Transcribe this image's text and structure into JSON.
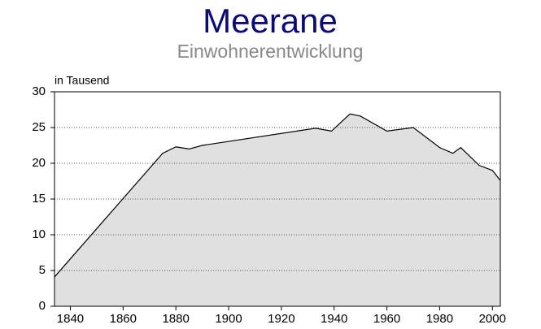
{
  "chart_data": {
    "type": "area",
    "title": "Meerane",
    "subtitle": "Einwohnerentwicklung",
    "y_label": "in Tausend",
    "x": [
      1834,
      1875,
      1880,
      1885,
      1890,
      1933,
      1939,
      1946,
      1950,
      1960,
      1970,
      1980,
      1985,
      1988,
      1995,
      2000,
      2003
    ],
    "values": [
      4.1,
      21.4,
      22.3,
      22.0,
      22.5,
      24.9,
      24.5,
      26.9,
      26.6,
      24.5,
      25.0,
      22.2,
      21.4,
      22.2,
      19.7,
      19.0,
      17.6
    ],
    "color": "#e0e0e0",
    "xlim": [
      1834,
      2003
    ],
    "xticks": [
      1840,
      1860,
      1880,
      1900,
      1920,
      1940,
      1960,
      1980,
      2000
    ],
    "ylim": [
      0,
      30
    ],
    "yticks": [
      0,
      5,
      10,
      15,
      20,
      25,
      30
    ],
    "grid": true
  }
}
